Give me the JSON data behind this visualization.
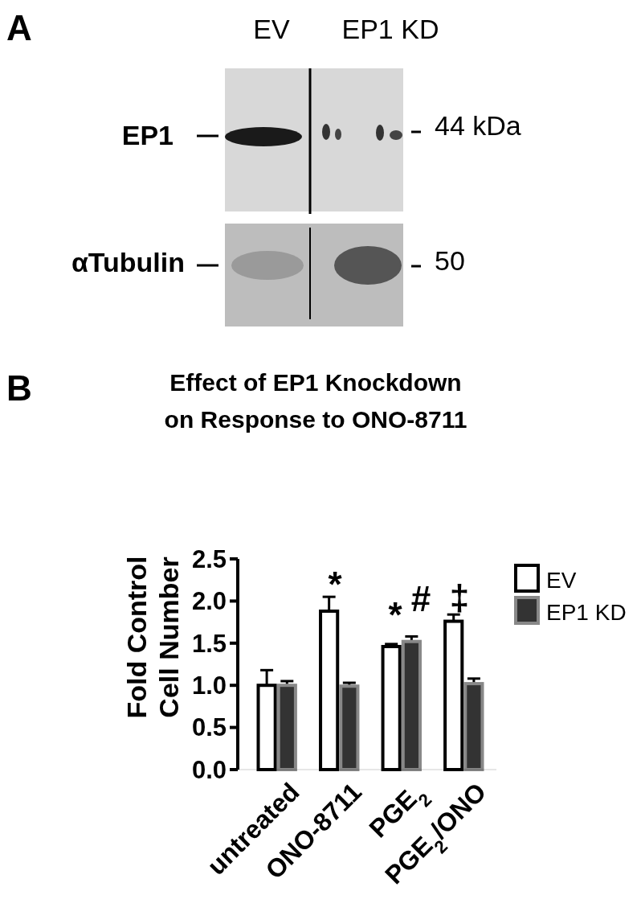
{
  "chart_data": [
    {
      "type": "other",
      "annotations": [
        "A",
        "EV",
        "EP1 KD",
        "EP1",
        "αTubulin",
        "44 kDa",
        "50"
      ]
    },
    {
      "type": "bar",
      "title": "Effect of EP1 Knockdown on Response to ONO-8711",
      "ylabel": "Fold Control Cell Number",
      "categories": [
        "untreated",
        "ONO-8711",
        "PGE$_{2}$",
        "PGE$_{2}$/ONO"
      ],
      "series": [
        {
          "name": "EV",
          "color": "#ffffff",
          "values": [
            1.0,
            1.88,
            1.46,
            1.76
          ],
          "errors": [
            0.18,
            0.17,
            0.03,
            0.08
          ]
        },
        {
          "name": "EP1 KD",
          "color": "#333333",
          "values": [
            1.0,
            0.99,
            1.52,
            1.02
          ],
          "errors": [
            0.05,
            0.04,
            0.06,
            0.06
          ]
        }
      ],
      "ylim": [
        0,
        2.5
      ],
      "yticks": [
        {
          "value": 0,
          "label": "0.0"
        },
        0.5,
        {
          "value": 1,
          "label": "1.0"
        },
        1.5,
        {
          "value": 2,
          "label": "2.0"
        },
        2.5
      ],
      "legend": "top right",
      "grid": false,
      "annotations": [
        "B",
        "*",
        "*",
        "#",
        "‡"
      ]
    }
  ]
}
